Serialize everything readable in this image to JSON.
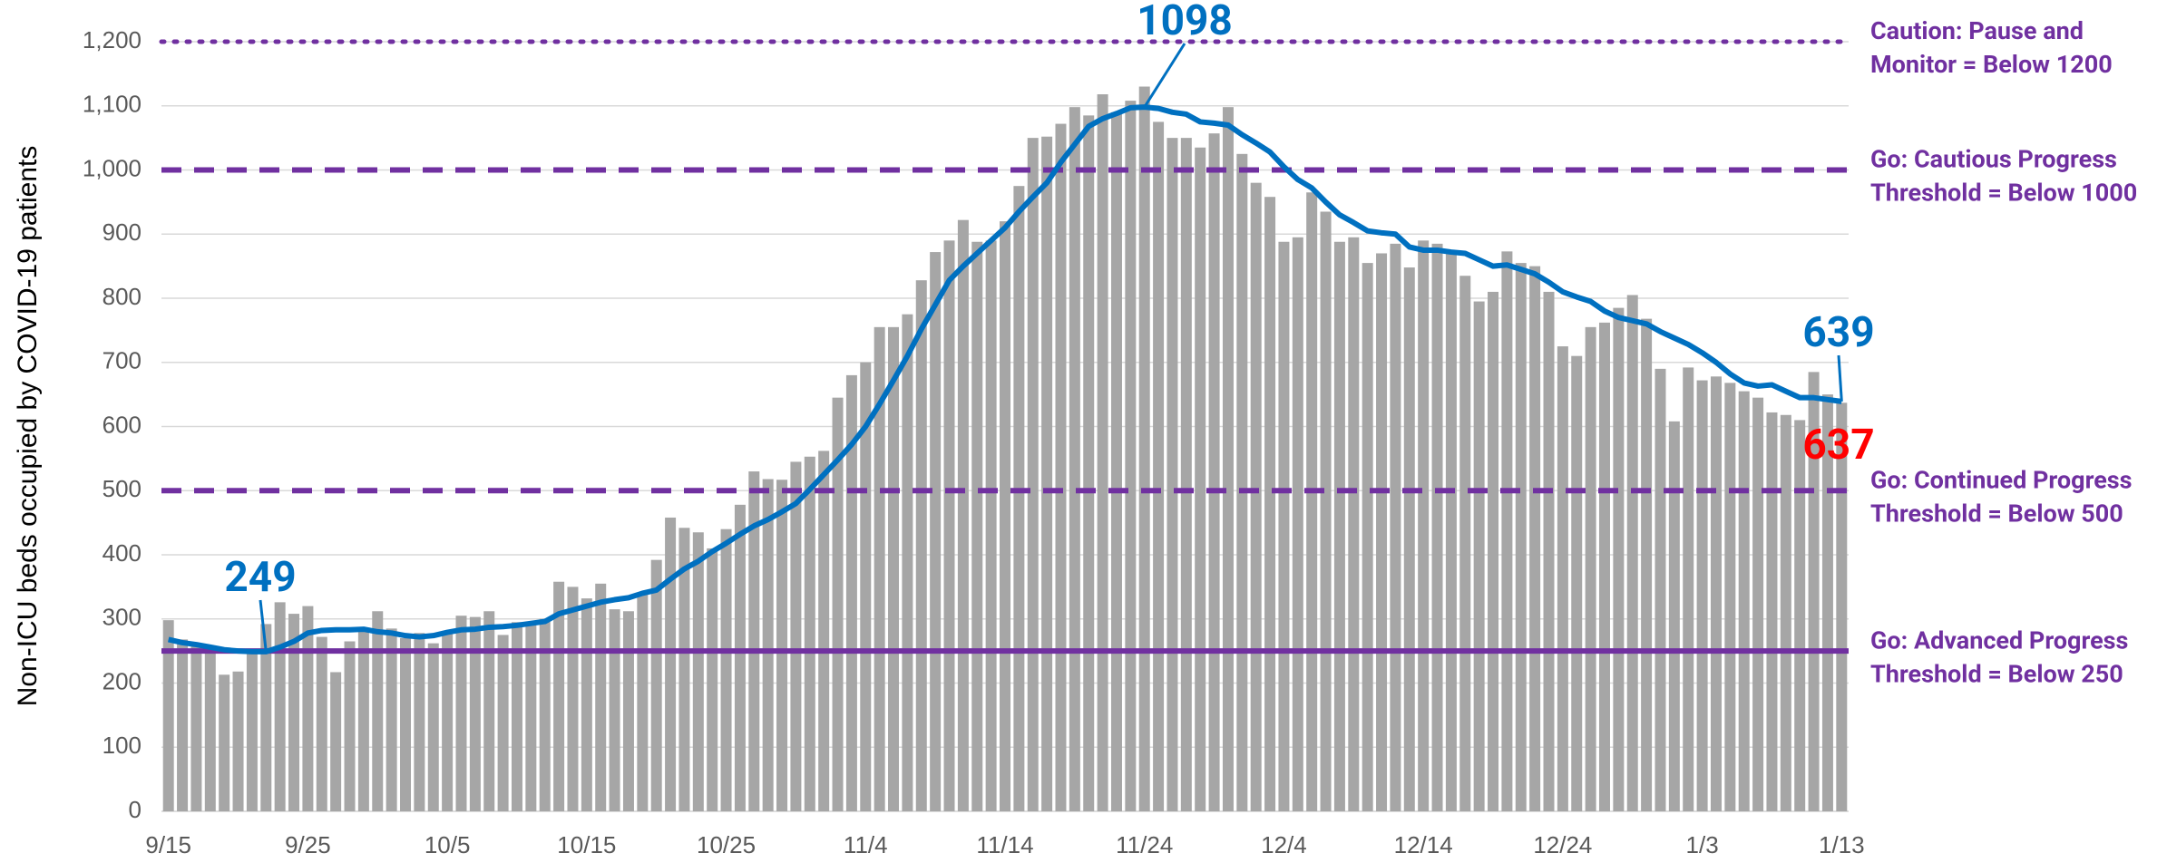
{
  "chart_data": {
    "type": "bar_line",
    "y_axis_label": "Non-ICU beds occupied by COVID-19 patients",
    "categories": [
      "9/15",
      null,
      null,
      null,
      null,
      null,
      null,
      null,
      null,
      null,
      "9/25",
      null,
      null,
      null,
      null,
      null,
      null,
      null,
      null,
      null,
      "10/5",
      null,
      null,
      null,
      null,
      null,
      null,
      null,
      null,
      null,
      "10/15",
      null,
      null,
      null,
      null,
      null,
      null,
      null,
      null,
      null,
      "10/25",
      null,
      null,
      null,
      null,
      null,
      null,
      null,
      null,
      null,
      "11/4",
      null,
      null,
      null,
      null,
      null,
      null,
      null,
      null,
      null,
      "11/14",
      null,
      null,
      null,
      null,
      null,
      null,
      null,
      null,
      null,
      "11/24",
      null,
      null,
      null,
      null,
      null,
      null,
      null,
      null,
      null,
      "12/4",
      null,
      null,
      null,
      null,
      null,
      null,
      null,
      null,
      null,
      "12/14",
      null,
      null,
      null,
      null,
      null,
      null,
      null,
      null,
      null,
      "12/24",
      null,
      null,
      null,
      null,
      null,
      null,
      null,
      null,
      null,
      "1/3",
      null,
      null,
      null,
      null,
      null,
      null,
      null,
      null,
      null,
      "1/13"
    ],
    "series": [
      {
        "type": "bar",
        "color": "#a6a6a6",
        "values": [
          298,
          268,
          262,
          250,
          213,
          218,
          248,
          292,
          326,
          308,
          320,
          272,
          217,
          265,
          280,
          312,
          285,
          270,
          278,
          262,
          280,
          305,
          303,
          312,
          275,
          295,
          290,
          300,
          358,
          350,
          332,
          355,
          315,
          312,
          340,
          392,
          458,
          442,
          435,
          410,
          440,
          478,
          530,
          518,
          517,
          545,
          553,
          562,
          645,
          680,
          700,
          755,
          755,
          775,
          828,
          872,
          890,
          922,
          888,
          890,
          920,
          975,
          1050,
          1052,
          1072,
          1098,
          1085,
          1118,
          1090,
          1108,
          1130,
          1075,
          1050,
          1050,
          1035,
          1057,
          1098,
          1025,
          980,
          958,
          888,
          895,
          965,
          935,
          888,
          895,
          855,
          870,
          885,
          848,
          890,
          885,
          870,
          835,
          795,
          810,
          873,
          855,
          850,
          810,
          725,
          710,
          755,
          762,
          785,
          805,
          768,
          690,
          608,
          692,
          672,
          678,
          668,
          655,
          645,
          622,
          618,
          610,
          685,
          650,
          637
        ]
      },
      {
        "type": "line",
        "color": "#0070c0",
        "values": [
          268,
          263,
          260,
          256,
          252,
          250,
          249,
          249,
          256,
          265,
          278,
          282,
          283,
          283,
          284,
          280,
          278,
          274,
          272,
          274,
          279,
          283,
          284,
          287,
          288,
          290,
          293,
          296,
          308,
          314,
          320,
          326,
          330,
          333,
          340,
          345,
          362,
          378,
          390,
          405,
          418,
          432,
          445,
          455,
          467,
          480,
          502,
          525,
          548,
          572,
          600,
          635,
          672,
          710,
          752,
          790,
          828,
          850,
          870,
          890,
          910,
          935,
          958,
          980,
          1012,
          1040,
          1068,
          1080,
          1088,
          1097,
          1098,
          1096,
          1090,
          1087,
          1075,
          1073,
          1070,
          1055,
          1042,
          1028,
          1005,
          985,
          972,
          950,
          930,
          918,
          905,
          902,
          900,
          880,
          875,
          875,
          872,
          870,
          860,
          850,
          852,
          845,
          838,
          825,
          810,
          802,
          795,
          780,
          770,
          765,
          760,
          748,
          738,
          728,
          715,
          700,
          682,
          668,
          663,
          665,
          655,
          645,
          645,
          642,
          639
        ]
      }
    ],
    "ylim": [
      0,
      1200
    ],
    "yticks": [
      0,
      100,
      200,
      300,
      400,
      500,
      600,
      700,
      800,
      900,
      {
        "value": 1000,
        "label": "1,000"
      },
      {
        "value": 1100,
        "label": "1,100"
      },
      {
        "value": 1200,
        "label": "1,200"
      }
    ],
    "grid": true,
    "thresholds": [
      {
        "value": 1200,
        "style": "dotted",
        "color": "#7030a0",
        "label": [
          "Caution: Pause and",
          "Monitor = Below 1200"
        ]
      },
      {
        "value": 1000,
        "style": "dashed",
        "color": "#7030a0",
        "label": [
          "Go: Cautious Progress",
          "Threshold = Below 1000"
        ]
      },
      {
        "value": 500,
        "style": "dashed",
        "color": "#7030a0",
        "label": [
          "Go: Continued Progress",
          "Threshold = Below 500"
        ]
      },
      {
        "value": 250,
        "style": "solid",
        "color": "#7030a0",
        "label": [
          "Go: Advanced Progress",
          "Threshold = Below 250"
        ]
      }
    ],
    "annotations": [
      {
        "text": "1098",
        "color": "#0070c0"
      },
      {
        "text": "249",
        "color": "#0070c0"
      },
      {
        "text": "639",
        "color": "#0070c0"
      },
      {
        "text": "637",
        "color": "#ff0000"
      }
    ]
  }
}
